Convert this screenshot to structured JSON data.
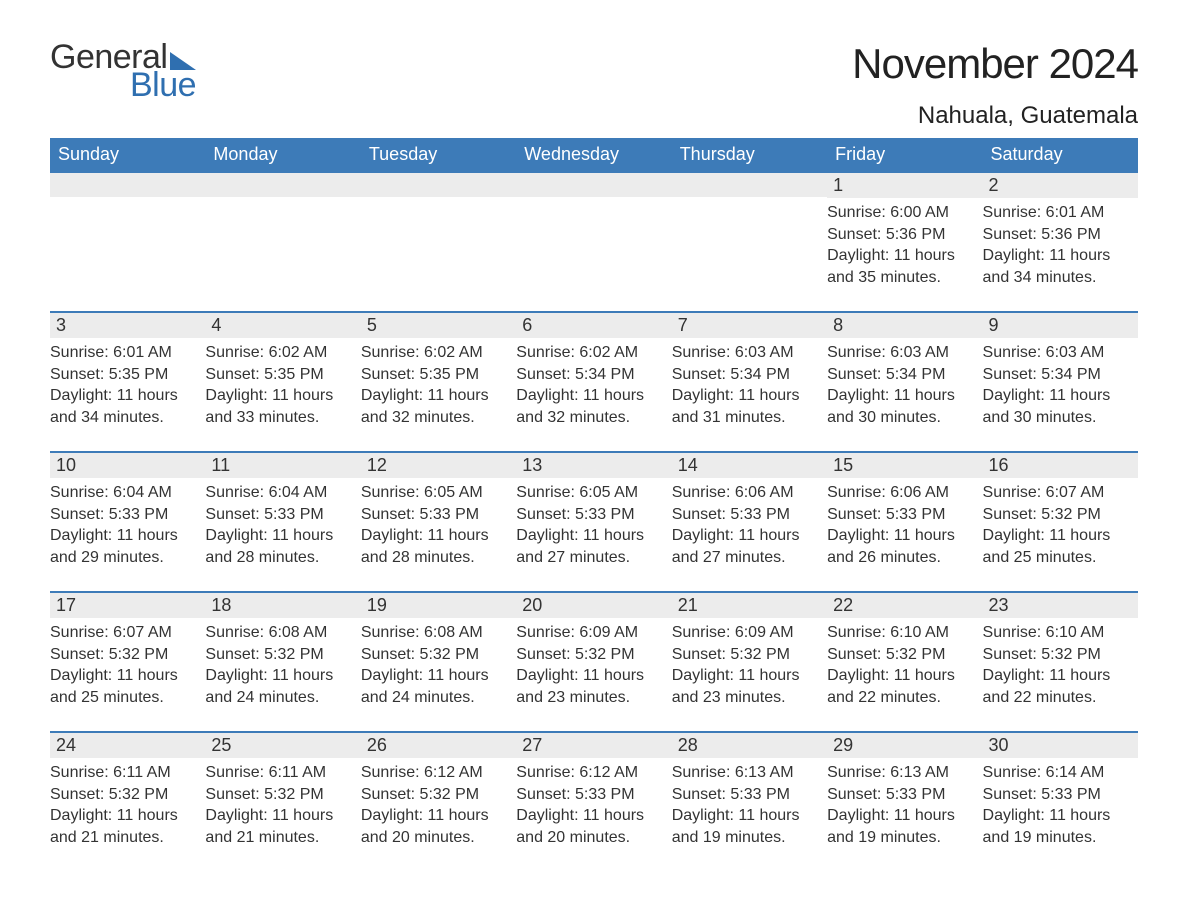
{
  "logo": {
    "general": "General",
    "blue": "Blue"
  },
  "title": "November 2024",
  "location": "Nahuala, Guatemala",
  "colors": {
    "header_bg": "#3d7bb8",
    "header_text": "#ffffff",
    "row_border": "#3d7bb8",
    "daynum_bg": "#ececec",
    "text": "#333333",
    "logo_blue": "#2f6fb0",
    "background": "#ffffff"
  },
  "weekdays": [
    "Sunday",
    "Monday",
    "Tuesday",
    "Wednesday",
    "Thursday",
    "Friday",
    "Saturday"
  ],
  "weeks": [
    [
      {
        "n": "",
        "sunrise": "",
        "sunset": "",
        "daylight": ""
      },
      {
        "n": "",
        "sunrise": "",
        "sunset": "",
        "daylight": ""
      },
      {
        "n": "",
        "sunrise": "",
        "sunset": "",
        "daylight": ""
      },
      {
        "n": "",
        "sunrise": "",
        "sunset": "",
        "daylight": ""
      },
      {
        "n": "",
        "sunrise": "",
        "sunset": "",
        "daylight": ""
      },
      {
        "n": "1",
        "sunrise": "Sunrise: 6:00 AM",
        "sunset": "Sunset: 5:36 PM",
        "daylight": "Daylight: 11 hours and 35 minutes."
      },
      {
        "n": "2",
        "sunrise": "Sunrise: 6:01 AM",
        "sunset": "Sunset: 5:36 PM",
        "daylight": "Daylight: 11 hours and 34 minutes."
      }
    ],
    [
      {
        "n": "3",
        "sunrise": "Sunrise: 6:01 AM",
        "sunset": "Sunset: 5:35 PM",
        "daylight": "Daylight: 11 hours and 34 minutes."
      },
      {
        "n": "4",
        "sunrise": "Sunrise: 6:02 AM",
        "sunset": "Sunset: 5:35 PM",
        "daylight": "Daylight: 11 hours and 33 minutes."
      },
      {
        "n": "5",
        "sunrise": "Sunrise: 6:02 AM",
        "sunset": "Sunset: 5:35 PM",
        "daylight": "Daylight: 11 hours and 32 minutes."
      },
      {
        "n": "6",
        "sunrise": "Sunrise: 6:02 AM",
        "sunset": "Sunset: 5:34 PM",
        "daylight": "Daylight: 11 hours and 32 minutes."
      },
      {
        "n": "7",
        "sunrise": "Sunrise: 6:03 AM",
        "sunset": "Sunset: 5:34 PM",
        "daylight": "Daylight: 11 hours and 31 minutes."
      },
      {
        "n": "8",
        "sunrise": "Sunrise: 6:03 AM",
        "sunset": "Sunset: 5:34 PM",
        "daylight": "Daylight: 11 hours and 30 minutes."
      },
      {
        "n": "9",
        "sunrise": "Sunrise: 6:03 AM",
        "sunset": "Sunset: 5:34 PM",
        "daylight": "Daylight: 11 hours and 30 minutes."
      }
    ],
    [
      {
        "n": "10",
        "sunrise": "Sunrise: 6:04 AM",
        "sunset": "Sunset: 5:33 PM",
        "daylight": "Daylight: 11 hours and 29 minutes."
      },
      {
        "n": "11",
        "sunrise": "Sunrise: 6:04 AM",
        "sunset": "Sunset: 5:33 PM",
        "daylight": "Daylight: 11 hours and 28 minutes."
      },
      {
        "n": "12",
        "sunrise": "Sunrise: 6:05 AM",
        "sunset": "Sunset: 5:33 PM",
        "daylight": "Daylight: 11 hours and 28 minutes."
      },
      {
        "n": "13",
        "sunrise": "Sunrise: 6:05 AM",
        "sunset": "Sunset: 5:33 PM",
        "daylight": "Daylight: 11 hours and 27 minutes."
      },
      {
        "n": "14",
        "sunrise": "Sunrise: 6:06 AM",
        "sunset": "Sunset: 5:33 PM",
        "daylight": "Daylight: 11 hours and 27 minutes."
      },
      {
        "n": "15",
        "sunrise": "Sunrise: 6:06 AM",
        "sunset": "Sunset: 5:33 PM",
        "daylight": "Daylight: 11 hours and 26 minutes."
      },
      {
        "n": "16",
        "sunrise": "Sunrise: 6:07 AM",
        "sunset": "Sunset: 5:32 PM",
        "daylight": "Daylight: 11 hours and 25 minutes."
      }
    ],
    [
      {
        "n": "17",
        "sunrise": "Sunrise: 6:07 AM",
        "sunset": "Sunset: 5:32 PM",
        "daylight": "Daylight: 11 hours and 25 minutes."
      },
      {
        "n": "18",
        "sunrise": "Sunrise: 6:08 AM",
        "sunset": "Sunset: 5:32 PM",
        "daylight": "Daylight: 11 hours and 24 minutes."
      },
      {
        "n": "19",
        "sunrise": "Sunrise: 6:08 AM",
        "sunset": "Sunset: 5:32 PM",
        "daylight": "Daylight: 11 hours and 24 minutes."
      },
      {
        "n": "20",
        "sunrise": "Sunrise: 6:09 AM",
        "sunset": "Sunset: 5:32 PM",
        "daylight": "Daylight: 11 hours and 23 minutes."
      },
      {
        "n": "21",
        "sunrise": "Sunrise: 6:09 AM",
        "sunset": "Sunset: 5:32 PM",
        "daylight": "Daylight: 11 hours and 23 minutes."
      },
      {
        "n": "22",
        "sunrise": "Sunrise: 6:10 AM",
        "sunset": "Sunset: 5:32 PM",
        "daylight": "Daylight: 11 hours and 22 minutes."
      },
      {
        "n": "23",
        "sunrise": "Sunrise: 6:10 AM",
        "sunset": "Sunset: 5:32 PM",
        "daylight": "Daylight: 11 hours and 22 minutes."
      }
    ],
    [
      {
        "n": "24",
        "sunrise": "Sunrise: 6:11 AM",
        "sunset": "Sunset: 5:32 PM",
        "daylight": "Daylight: 11 hours and 21 minutes."
      },
      {
        "n": "25",
        "sunrise": "Sunrise: 6:11 AM",
        "sunset": "Sunset: 5:32 PM",
        "daylight": "Daylight: 11 hours and 21 minutes."
      },
      {
        "n": "26",
        "sunrise": "Sunrise: 6:12 AM",
        "sunset": "Sunset: 5:32 PM",
        "daylight": "Daylight: 11 hours and 20 minutes."
      },
      {
        "n": "27",
        "sunrise": "Sunrise: 6:12 AM",
        "sunset": "Sunset: 5:33 PM",
        "daylight": "Daylight: 11 hours and 20 minutes."
      },
      {
        "n": "28",
        "sunrise": "Sunrise: 6:13 AM",
        "sunset": "Sunset: 5:33 PM",
        "daylight": "Daylight: 11 hours and 19 minutes."
      },
      {
        "n": "29",
        "sunrise": "Sunrise: 6:13 AM",
        "sunset": "Sunset: 5:33 PM",
        "daylight": "Daylight: 11 hours and 19 minutes."
      },
      {
        "n": "30",
        "sunrise": "Sunrise: 6:14 AM",
        "sunset": "Sunset: 5:33 PM",
        "daylight": "Daylight: 11 hours and 19 minutes."
      }
    ]
  ]
}
